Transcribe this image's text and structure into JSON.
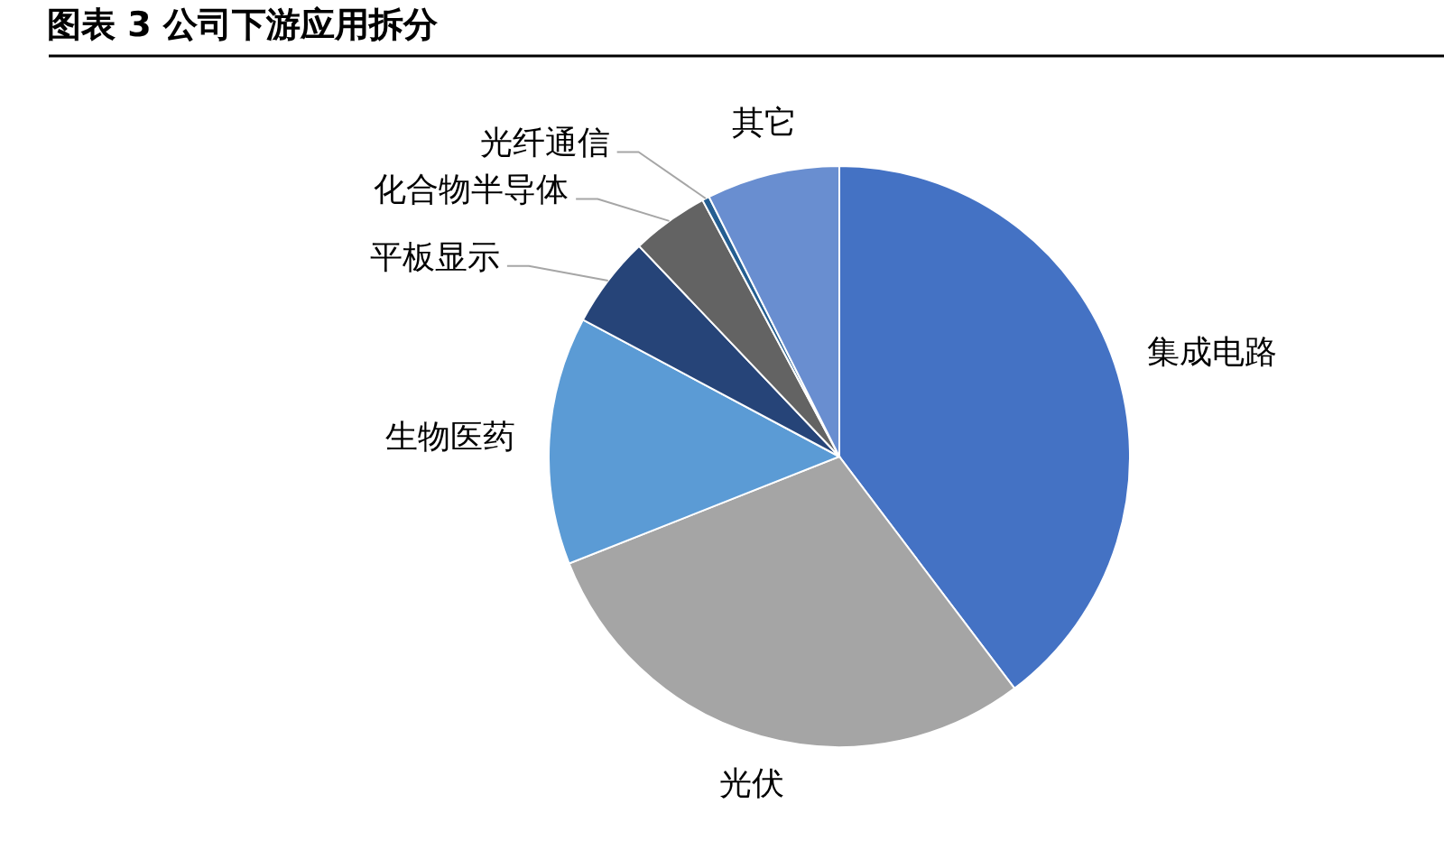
{
  "chart_data": {
    "type": "pie",
    "title": "图表 3 公司下游应用拆分",
    "categories": [
      "集成电路",
      "光伏",
      "生物医药",
      "平板显示",
      "化合物半导体",
      "光纤通信",
      "其它"
    ],
    "values": [
      39.7,
      29.3,
      13.8,
      5.1,
      4.3,
      0.4,
      7.4
    ],
    "colors": [
      "#4472c4",
      "#a5a5a5",
      "#5b9bd5",
      "#264478",
      "#636363",
      "#255e91",
      "#698ed0"
    ]
  }
}
